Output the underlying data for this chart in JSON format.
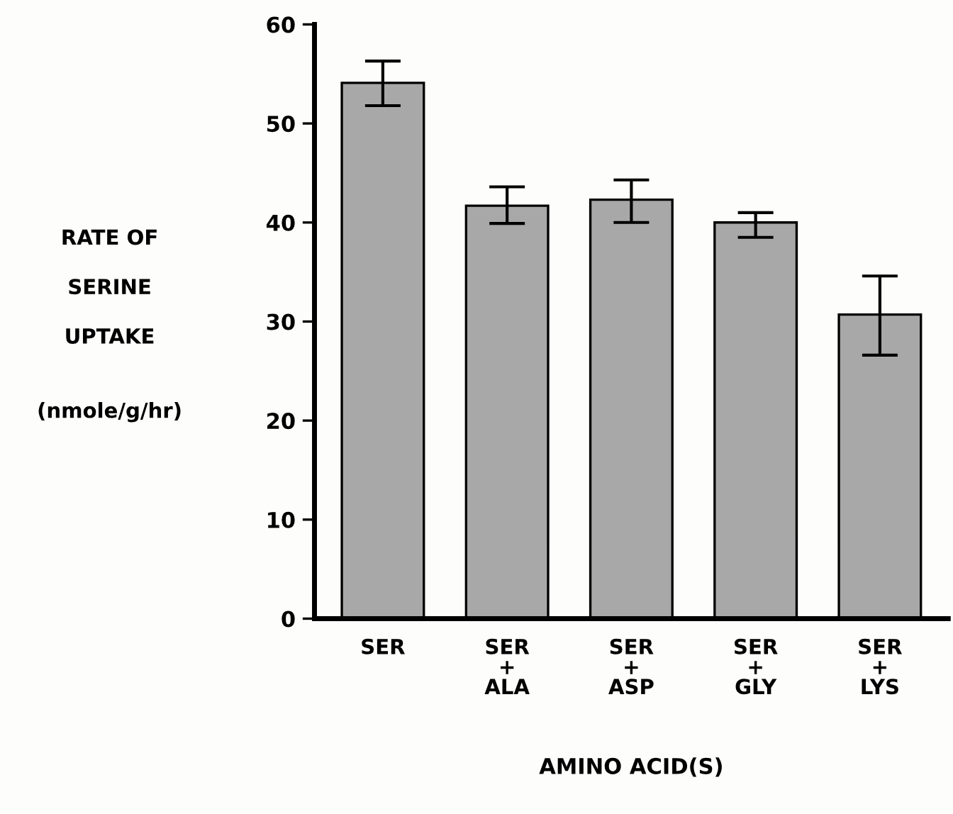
{
  "chart_data": {
    "type": "bar",
    "xlabel": "AMINO ACID(S)",
    "ylabel": "RATE OF\n\nSERINE\n\nUPTAKE\n\n\n(nmole/g/hr)",
    "categories": [
      "SER",
      "SER\n+\nALA",
      "SER\n+\nASP",
      "SER\n+\nGLY",
      "SER\n+\nLYS"
    ],
    "values": [
      54.1,
      41.7,
      42.3,
      40.0,
      30.7
    ],
    "errors": [
      [
        51.8,
        56.3
      ],
      [
        39.9,
        43.6
      ],
      [
        40.0,
        44.3
      ],
      [
        38.5,
        41.0
      ],
      [
        26.6,
        34.6
      ]
    ],
    "color": "#a8a8a8",
    "ylim": [
      0,
      60
    ],
    "yticks": [
      0,
      10,
      20,
      30,
      40,
      50,
      60
    ],
    "grid": false
  }
}
